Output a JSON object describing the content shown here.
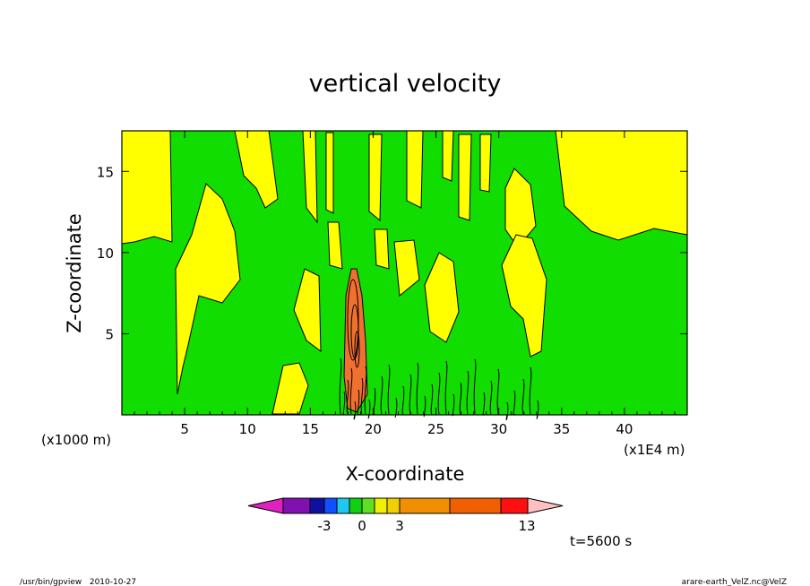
{
  "chart_data": {
    "type": "heatmap",
    "title": "vertical velocity",
    "xlabel": "X-coordinate",
    "ylabel": "Z-coordinate",
    "x_unit_left": "(x1000 m)",
    "x_unit_right": "(x1E4 m)",
    "xlim": [
      0,
      45
    ],
    "ylim": [
      0,
      17.5
    ],
    "x_ticks": [
      5,
      10,
      15,
      20,
      25,
      30,
      35,
      40
    ],
    "y_ticks": [
      5,
      10,
      15
    ],
    "x_tick_labels": [
      "5",
      "10",
      "15",
      "20",
      "25",
      "30",
      "35",
      "40"
    ],
    "y_tick_labels": [
      "5",
      "10",
      "15"
    ],
    "colorbar": {
      "labels": [
        {
          "text": "-3",
          "value": -3
        },
        {
          "text": "0",
          "value": 0
        },
        {
          "text": "3",
          "value": 3
        },
        {
          "text": "13",
          "value": 13
        }
      ],
      "colors": [
        "#e020c0",
        "#8010b0",
        "#1010a0",
        "#1050ff",
        "#20c8f0",
        "#10d010",
        "#60e020",
        "#f0f000",
        "#f0d000",
        "#f09000",
        "#f06000",
        "#ff1010",
        "#ff7070",
        "#ffc0c0"
      ]
    },
    "field_colors": {
      "yellow": "#ffff00",
      "green": "#11dd00",
      "orange": "#f07030",
      "contour": "#000000"
    }
  },
  "annotations": {
    "time": "t=5600 s",
    "program": "/usr/bin/gpview   2010-10-27",
    "source": "arare-earth_VelZ.nc@VelZ"
  }
}
